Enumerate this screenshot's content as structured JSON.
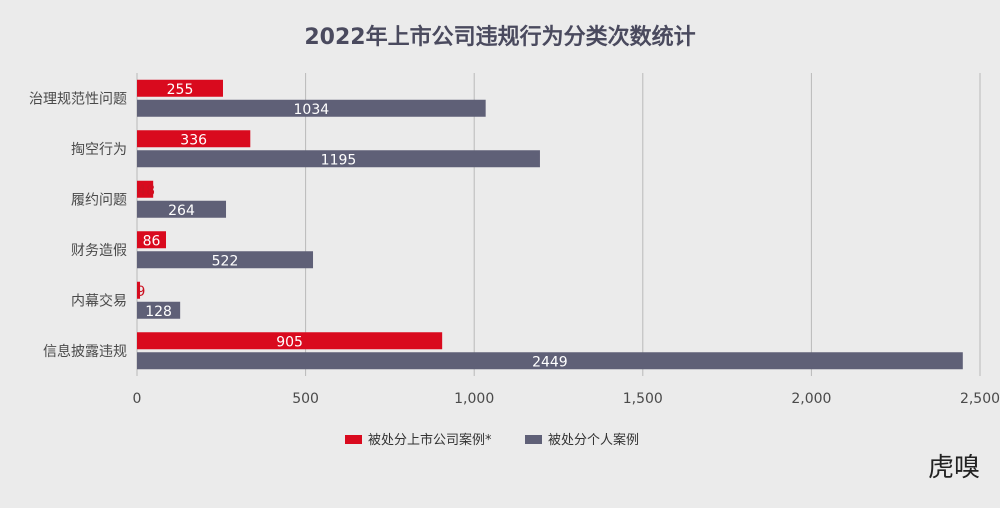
{
  "chart_data": {
    "type": "bar",
    "orientation": "horizontal",
    "title": "2022年上市公司违规行为分类次数统计",
    "categories": [
      "治理规范性问题",
      "掏空行为",
      "履约问题",
      "财务造假",
      "内幕交易",
      "信息披露违规"
    ],
    "series": [
      {
        "name": "被处分上市公司案例*",
        "color": "#d90a1e",
        "values": [
          255,
          336,
          48,
          86,
          9,
          905
        ]
      },
      {
        "name": "被处分个人案例",
        "color": "#5f6077",
        "values": [
          1034,
          1195,
          264,
          522,
          128,
          2449
        ]
      }
    ],
    "xlim": [
      0,
      2500
    ],
    "xticks": [
      0,
      500,
      1000,
      1500,
      2000,
      2500
    ],
    "xtick_labels": [
      "0",
      "500",
      "1,000",
      "1,500",
      "2,000",
      "2,500"
    ],
    "grid": "vertical",
    "legend": "bottom-center",
    "xlabel": "",
    "ylabel": ""
  },
  "watermark": "虎嗅"
}
